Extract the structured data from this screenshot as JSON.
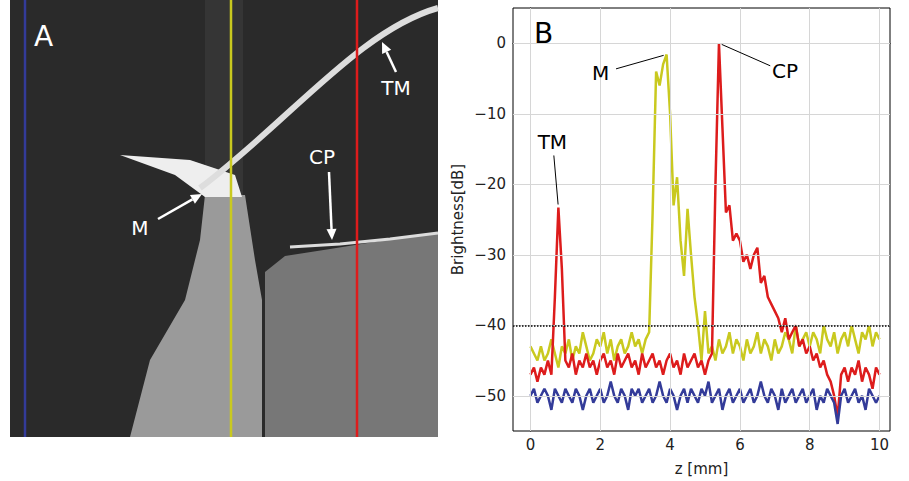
{
  "chart_data": [
    {
      "type": "image",
      "panel": "A",
      "annotations": [
        "M",
        "CP",
        "TM"
      ]
    },
    {
      "type": "line",
      "panel": "B",
      "xlabel": "z [mm]",
      "ylabel": "Brightness[dB]",
      "xlim": [
        -0.5,
        10.3
      ],
      "xticks": [
        0,
        2,
        4,
        6,
        8,
        10
      ],
      "ylim": [
        -55,
        5
      ],
      "yticks": [
        {
          "value": -50,
          "label": "−50"
        },
        {
          "value": -40,
          "label": "−40"
        },
        {
          "value": -30,
          "label": "−30"
        },
        {
          "value": -20,
          "label": "−20"
        },
        {
          "value": -10,
          "label": "−10"
        },
        0
      ],
      "grid": true,
      "hlines": [
        {
          "value": -40,
          "line_style": "dotted",
          "color": "#000000"
        }
      ],
      "annotations": [
        {
          "text": "TM",
          "x": 0.8,
          "y": -23.3
        },
        {
          "text": "M",
          "x": 3.9,
          "y": -1.6
        },
        {
          "text": "CP",
          "x": 5.4,
          "y": 0
        }
      ],
      "x": [
        0,
        0.1,
        0.2,
        0.3,
        0.4,
        0.5,
        0.6,
        0.7,
        0.8,
        0.9,
        1,
        1.1,
        1.2,
        1.3,
        1.4,
        1.5,
        1.6,
        1.7,
        1.8,
        1.9,
        2,
        2.1,
        2.2,
        2.3,
        2.4,
        2.5,
        2.6,
        2.7,
        2.8,
        2.9,
        3,
        3.1,
        3.2,
        3.3,
        3.4,
        3.5,
        3.6,
        3.7,
        3.8,
        3.9,
        4,
        4.1,
        4.2,
        4.3,
        4.4,
        4.5,
        4.6,
        4.7,
        4.8,
        4.9,
        5,
        5.1,
        5.2,
        5.3,
        5.4,
        5.5,
        5.6,
        5.7,
        5.8,
        5.9,
        6,
        6.1,
        6.2,
        6.3,
        6.4,
        6.5,
        6.6,
        6.7,
        6.8,
        6.9,
        7,
        7.1,
        7.2,
        7.3,
        7.4,
        7.5,
        7.6,
        7.7,
        7.8,
        7.9,
        8,
        8.1,
        8.2,
        8.3,
        8.4,
        8.5,
        8.6,
        8.7,
        8.8,
        8.9,
        9,
        9.1,
        9.2,
        9.3,
        9.4,
        9.5,
        9.6,
        9.7,
        9.8,
        9.9,
        10
      ],
      "series": [
        {
          "color": "#c9c91f",
          "line_style": "solid",
          "values": [
            -43,
            -44,
            -45,
            -43,
            -45,
            -44,
            -42,
            -44,
            -46,
            -43,
            -44,
            -42,
            -45,
            -43,
            -44,
            -41,
            -43,
            -45,
            -44,
            -42,
            -43,
            -41,
            -44,
            -42,
            -45,
            -43,
            -42,
            -44,
            -43,
            -41,
            -43,
            -42,
            -44,
            -42,
            -41,
            -24,
            -4,
            -6,
            -3,
            -1.6,
            -10,
            -23,
            -19,
            -28,
            -33,
            -23.5,
            -30,
            -36,
            -40,
            -45,
            -38,
            -44,
            -43,
            -45,
            -42,
            -44,
            -43,
            -41,
            -44,
            -42,
            -43,
            -45,
            -42,
            -44,
            -43,
            -41,
            -44,
            -42,
            -43,
            -45,
            -42,
            -44,
            -43,
            -41,
            -42,
            -44,
            -40,
            -43,
            -42,
            -41,
            -43,
            -41,
            -42,
            -44,
            -40,
            -42,
            -43,
            -41,
            -44,
            -42,
            -41,
            -43,
            -40,
            -42,
            -44,
            -41,
            -42,
            -40,
            -43,
            -41,
            -42
          ]
        },
        {
          "color": "#dd1c1c",
          "line_style": "solid",
          "values": [
            -47,
            -46,
            -48,
            -46,
            -47,
            -45,
            -47,
            -36,
            -23.3,
            -32,
            -45,
            -46,
            -44,
            -47,
            -45,
            -46,
            -44,
            -46,
            -45,
            -47,
            -45,
            -44,
            -46,
            -45,
            -47,
            -44,
            -46,
            -45,
            -44,
            -46,
            -45,
            -47,
            -44,
            -46,
            -45,
            -44,
            -46,
            -45,
            -47,
            -45,
            -44,
            -46,
            -45,
            -47,
            -44,
            -46,
            -45,
            -44,
            -46,
            -45,
            -47,
            -45,
            -44,
            -20,
            0,
            -12,
            -24,
            -23,
            -28,
            -27,
            -28,
            -31,
            -30,
            -32,
            -30,
            -29,
            -34,
            -33,
            -36,
            -37,
            -38,
            -39,
            -41,
            -39,
            -42,
            -41,
            -40,
            -43,
            -42,
            -44,
            -43,
            -45,
            -44,
            -46,
            -45,
            -47,
            -48,
            -50,
            -53,
            -47,
            -46,
            -48,
            -46,
            -47,
            -45,
            -48,
            -46,
            -47,
            -49,
            -46,
            -47
          ]
        },
        {
          "color": "#333b99",
          "line_style": "solid",
          "values": [
            -50,
            -49,
            -51,
            -50,
            -49,
            -50,
            -52,
            -49,
            -50,
            -51,
            -49,
            -50,
            -51,
            -49,
            -50,
            -52,
            -50,
            -49,
            -51,
            -50,
            -49,
            -51,
            -50,
            -48,
            -50,
            -51,
            -49,
            -50,
            -52,
            -49,
            -50,
            -49,
            -51,
            -50,
            -49,
            -51,
            -50,
            -48,
            -50,
            -51,
            -49,
            -50,
            -52,
            -50,
            -49,
            -51,
            -49,
            -50,
            -51,
            -49,
            -50,
            -48,
            -51,
            -50,
            -49,
            -52,
            -50,
            -49,
            -51,
            -50,
            -49,
            -51,
            -50,
            -49,
            -51,
            -50,
            -48,
            -50,
            -51,
            -49,
            -50,
            -52,
            -49,
            -51,
            -50,
            -49,
            -51,
            -50,
            -49,
            -51,
            -50,
            -49,
            -52,
            -50,
            -51,
            -49,
            -50,
            -51,
            -54,
            -50,
            -49,
            -51,
            -50,
            -49,
            -51,
            -50,
            -52,
            -49,
            -50,
            -51,
            -50
          ]
        }
      ]
    }
  ]
}
